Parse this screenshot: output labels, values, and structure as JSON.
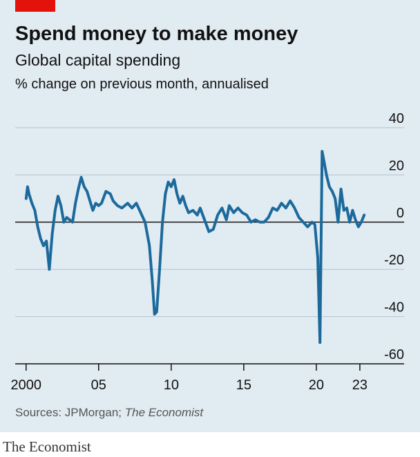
{
  "chart_data": {
    "type": "line",
    "title": "Spend money to make money",
    "subtitle": "Global capital spending",
    "units": "% change on previous month, annualised",
    "source": {
      "text": "Sources: JPMorgan;",
      "italic": "The Economist"
    },
    "brand": "The Economist",
    "x": [
      2000.0,
      2000.1,
      2000.2,
      2000.4,
      2000.6,
      2000.8,
      2001.0,
      2001.2,
      2001.4,
      2001.6,
      2001.8,
      2002.0,
      2002.2,
      2002.4,
      2002.6,
      2002.8,
      2003.0,
      2003.2,
      2003.4,
      2003.6,
      2003.8,
      2004.0,
      2004.2,
      2004.4,
      2004.6,
      2004.8,
      2005.0,
      2005.2,
      2005.5,
      2005.8,
      2006.0,
      2006.3,
      2006.6,
      2007.0,
      2007.3,
      2007.6,
      2007.9,
      2008.2,
      2008.5,
      2008.7,
      2008.85,
      2009.0,
      2009.2,
      2009.4,
      2009.6,
      2009.8,
      2010.0,
      2010.2,
      2010.4,
      2010.6,
      2010.8,
      2011.0,
      2011.2,
      2011.5,
      2011.8,
      2012.0,
      2012.3,
      2012.6,
      2012.9,
      2013.2,
      2013.5,
      2013.8,
      2014.0,
      2014.3,
      2014.6,
      2014.9,
      2015.2,
      2015.5,
      2015.8,
      2016.1,
      2016.4,
      2016.7,
      2017.0,
      2017.3,
      2017.6,
      2017.9,
      2018.2,
      2018.5,
      2018.8,
      2019.1,
      2019.4,
      2019.7,
      2019.9,
      2020.1,
      2020.25,
      2020.4,
      2020.55,
      2020.7,
      2020.9,
      2021.1,
      2021.3,
      2021.5,
      2021.7,
      2021.9,
      2022.1,
      2022.3,
      2022.5,
      2022.7,
      2022.9,
      2023.1,
      2023.3
    ],
    "series": [
      {
        "name": "Global capital spending",
        "color": "#1c6a9c",
        "values": [
          10,
          15,
          12,
          8,
          5,
          -2,
          -7,
          -10,
          -8,
          -20,
          -5,
          5,
          11,
          7,
          0,
          2,
          1,
          0,
          8,
          14,
          19,
          15,
          13,
          9,
          5,
          8,
          7,
          8,
          13,
          12,
          9,
          7,
          6,
          8,
          6,
          8,
          4,
          0,
          -10,
          -25,
          -39,
          -38,
          -20,
          0,
          12,
          17,
          15,
          18,
          12,
          8,
          11,
          7,
          4,
          5,
          3,
          6,
          1,
          -4,
          -3,
          3,
          6,
          1,
          7,
          4,
          6,
          4,
          3,
          0,
          1,
          0,
          0,
          2,
          6,
          5,
          8,
          6,
          9,
          6,
          2,
          0,
          -2,
          0,
          -1,
          -15,
          -51,
          30,
          25,
          20,
          15,
          13,
          10,
          0,
          14,
          5,
          6,
          0,
          5,
          1,
          -2,
          0,
          3
        ]
      }
    ],
    "xlim": [
      1999.25,
      2026.05
    ],
    "ylim": [
      -60,
      40
    ],
    "xticks": [
      2000,
      {
        "value": 2005,
        "label": "05"
      },
      {
        "value": 2010,
        "label": "10"
      },
      {
        "value": 2015,
        "label": "15"
      },
      {
        "value": 2020,
        "label": "20"
      },
      {
        "value": 2023,
        "label": "23"
      }
    ],
    "yticks": [
      40,
      20,
      0,
      -20,
      -40,
      -60
    ],
    "grid": true
  }
}
